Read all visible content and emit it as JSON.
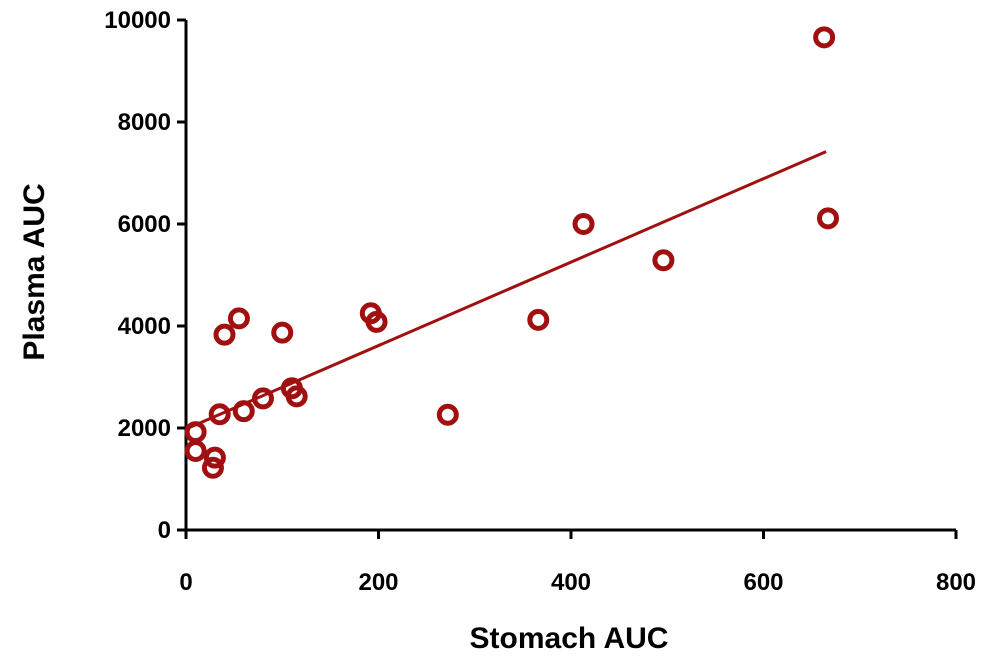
{
  "chart_data": {
    "type": "scatter",
    "title": "",
    "xlabel": "Stomach AUC",
    "ylabel": "Plasma AUC",
    "xlim": [
      0,
      800
    ],
    "ylim": [
      0,
      10000
    ],
    "x_ticks": [
      0,
      200,
      400,
      600,
      800
    ],
    "y_ticks": [
      0,
      2000,
      4000,
      6000,
      8000,
      10000
    ],
    "x_tick_labels": [
      "0",
      "200",
      "400",
      "600",
      "800"
    ],
    "y_tick_labels": [
      "0",
      "2000",
      "4000",
      "6000",
      "8000",
      "10000"
    ],
    "grid": false,
    "legend": "none",
    "marker": "open-circle",
    "color": "#a01010",
    "series": [
      {
        "points": [
          {
            "x": 10,
            "y": 1920
          },
          {
            "x": 10,
            "y": 1550
          },
          {
            "x": 28,
            "y": 1220
          },
          {
            "x": 30,
            "y": 1420
          },
          {
            "x": 35,
            "y": 2270
          },
          {
            "x": 40,
            "y": 3830
          },
          {
            "x": 55,
            "y": 4150
          },
          {
            "x": 60,
            "y": 2330
          },
          {
            "x": 80,
            "y": 2580
          },
          {
            "x": 100,
            "y": 3870
          },
          {
            "x": 110,
            "y": 2780
          },
          {
            "x": 115,
            "y": 2620
          },
          {
            "x": 192,
            "y": 4250
          },
          {
            "x": 198,
            "y": 4080
          },
          {
            "x": 272,
            "y": 2260
          },
          {
            "x": 366,
            "y": 4120
          },
          {
            "x": 413,
            "y": 6000
          },
          {
            "x": 496,
            "y": 5290
          },
          {
            "x": 663,
            "y": 9660
          },
          {
            "x": 667,
            "y": 6110
          }
        ]
      }
    ],
    "trendline": {
      "x": [
        0,
        665
      ],
      "y": [
        1980,
        7420
      ]
    }
  }
}
